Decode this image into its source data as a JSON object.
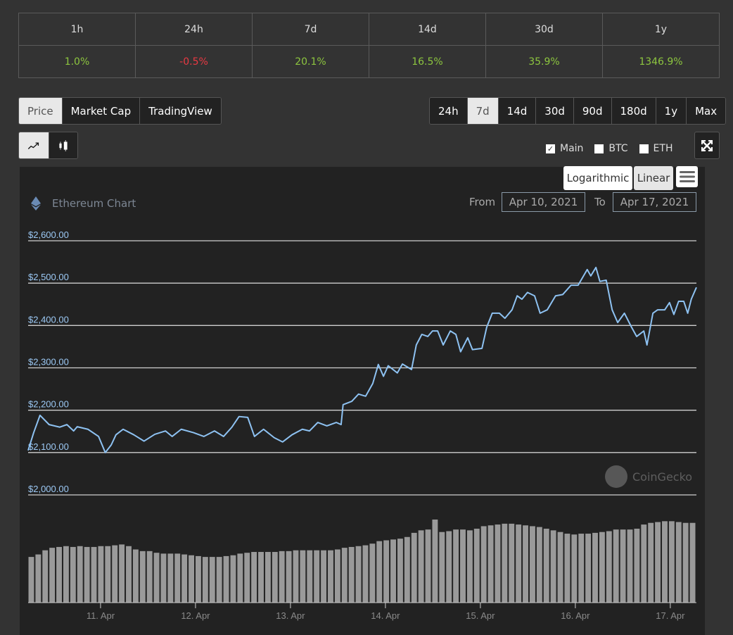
{
  "performance": {
    "periods": [
      "1h",
      "24h",
      "7d",
      "14d",
      "30d",
      "1y"
    ],
    "changes": [
      "1.0%",
      "-0.5%",
      "20.1%",
      "16.5%",
      "35.9%",
      "1346.9%"
    ]
  },
  "tabs": {
    "price": "Price",
    "market_cap": "Market Cap",
    "trading_view": "TradingView",
    "active": "Price"
  },
  "ranges": {
    "items": [
      "24h",
      "7d",
      "14d",
      "30d",
      "90d",
      "180d",
      "1y",
      "Max"
    ],
    "active": "7d"
  },
  "chart_type": {
    "line_icon": "line-chart-icon",
    "candle_icon": "candlestick-icon",
    "active": "line"
  },
  "compare": {
    "main": "Main",
    "btc": "BTC",
    "eth": "ETH",
    "main_checked": true,
    "btc_checked": false,
    "eth_checked": false
  },
  "scale": {
    "log": "Logarithmic",
    "linear": "Linear",
    "active": "Linear"
  },
  "chart_header": {
    "title": "Ethereum Chart",
    "from_label": "From",
    "from": "Apr 10, 2021",
    "to_label": "To",
    "to": "Apr 17, 2021"
  },
  "watermark": "CoinGecko",
  "colors": {
    "line": "#8ec2f2",
    "positive": "#8dc63f",
    "negative": "#ea3943",
    "volume": "#9a9a9a"
  },
  "chart_data": {
    "type": "line",
    "title": "Ethereum Chart",
    "x_unit": "hours since Apr 10 00:00",
    "xlim": [
      5.7,
      174.6
    ],
    "x_ticks": [
      {
        "label": "11. Apr",
        "value": 24
      },
      {
        "label": "12. Apr",
        "value": 48
      },
      {
        "label": "13. Apr",
        "value": 72
      },
      {
        "label": "14. Apr",
        "value": 96
      },
      {
        "label": "15. Apr",
        "value": 120
      },
      {
        "label": "16. Apr",
        "value": 144
      },
      {
        "label": "17. Apr",
        "value": 168
      }
    ],
    "y_ticks": [
      {
        "label": "$2,000.00",
        "value": 2000
      },
      {
        "label": "$2,100.00",
        "value": 2100
      },
      {
        "label": "$2,200.00",
        "value": 2200
      },
      {
        "label": "$2,300.00",
        "value": 2300
      },
      {
        "label": "$2,400.00",
        "value": 2400
      },
      {
        "label": "$2,500.00",
        "value": 2500
      },
      {
        "label": "$2,600.00",
        "value": 2600
      }
    ],
    "ylim": [
      2000,
      2600
    ],
    "price": [
      [
        5.7,
        2105
      ],
      [
        7.1,
        2147
      ],
      [
        8.7,
        2188
      ],
      [
        11.0,
        2166
      ],
      [
        13.7,
        2160
      ],
      [
        15.5,
        2166
      ],
      [
        17.2,
        2151
      ],
      [
        18.1,
        2161
      ],
      [
        20.8,
        2155
      ],
      [
        23.5,
        2138
      ],
      [
        25.2,
        2100
      ],
      [
        26.7,
        2118
      ],
      [
        27.9,
        2142
      ],
      [
        29.7,
        2155
      ],
      [
        32.4,
        2142
      ],
      [
        35.0,
        2127
      ],
      [
        37.7,
        2143
      ],
      [
        40.4,
        2151
      ],
      [
        42.1,
        2138
      ],
      [
        44.4,
        2155
      ],
      [
        47.5,
        2147
      ],
      [
        50.1,
        2138
      ],
      [
        52.8,
        2151
      ],
      [
        55.1,
        2138
      ],
      [
        57.2,
        2160
      ],
      [
        59.0,
        2185
      ],
      [
        61.2,
        2183
      ],
      [
        62.9,
        2138
      ],
      [
        65.2,
        2155
      ],
      [
        67.9,
        2135
      ],
      [
        70.0,
        2125
      ],
      [
        72.4,
        2142
      ],
      [
        75.0,
        2155
      ],
      [
        76.8,
        2151
      ],
      [
        78.9,
        2171
      ],
      [
        81.2,
        2163
      ],
      [
        83.6,
        2171
      ],
      [
        84.8,
        2166
      ],
      [
        85.3,
        2213
      ],
      [
        87.5,
        2221
      ],
      [
        89.2,
        2238
      ],
      [
        91.0,
        2233
      ],
      [
        92.8,
        2263
      ],
      [
        94.2,
        2308
      ],
      [
        95.5,
        2280
      ],
      [
        96.7,
        2305
      ],
      [
        99.0,
        2288
      ],
      [
        100.3,
        2309
      ],
      [
        102.6,
        2296
      ],
      [
        103.8,
        2354
      ],
      [
        105.2,
        2379
      ],
      [
        106.7,
        2374
      ],
      [
        107.9,
        2387
      ],
      [
        109.2,
        2387
      ],
      [
        110.6,
        2354
      ],
      [
        112.4,
        2387
      ],
      [
        113.8,
        2379
      ],
      [
        115.0,
        2338
      ],
      [
        116.8,
        2371
      ],
      [
        118.0,
        2343
      ],
      [
        120.4,
        2346
      ],
      [
        121.6,
        2396
      ],
      [
        123.0,
        2429
      ],
      [
        124.8,
        2429
      ],
      [
        126.2,
        2417
      ],
      [
        128.0,
        2437
      ],
      [
        129.3,
        2470
      ],
      [
        130.5,
        2462
      ],
      [
        131.9,
        2478
      ],
      [
        133.7,
        2470
      ],
      [
        135.1,
        2429
      ],
      [
        136.9,
        2437
      ],
      [
        139.0,
        2470
      ],
      [
        140.8,
        2473
      ],
      [
        142.9,
        2495
      ],
      [
        144.7,
        2495
      ],
      [
        147.0,
        2532
      ],
      [
        147.9,
        2517
      ],
      [
        149.2,
        2537
      ],
      [
        150.2,
        2504
      ],
      [
        151.8,
        2507
      ],
      [
        153.3,
        2437
      ],
      [
        154.7,
        2407
      ],
      [
        156.4,
        2429
      ],
      [
        158.2,
        2396
      ],
      [
        159.5,
        2374
      ],
      [
        161.3,
        2387
      ],
      [
        162.1,
        2354
      ],
      [
        163.6,
        2429
      ],
      [
        164.8,
        2437
      ],
      [
        166.6,
        2437
      ],
      [
        167.8,
        2454
      ],
      [
        168.9,
        2426
      ],
      [
        170.1,
        2457
      ],
      [
        171.4,
        2457
      ],
      [
        172.4,
        2429
      ],
      [
        173.3,
        2462
      ],
      [
        174.6,
        2490
      ]
    ],
    "volume_relative": [
      55,
      58,
      63,
      66,
      67,
      68,
      67,
      68,
      67,
      67,
      68,
      68,
      69,
      70,
      68,
      64,
      62,
      62,
      60,
      59,
      59,
      59,
      58,
      57,
      56,
      55,
      55,
      55,
      56,
      57,
      59,
      60,
      61,
      61,
      61,
      61,
      62,
      62,
      63,
      63,
      63,
      63,
      63,
      63,
      64,
      66,
      67,
      68,
      69,
      71,
      74,
      75,
      76,
      77,
      79,
      84,
      87,
      88,
      100,
      85,
      86,
      88,
      88,
      87,
      89,
      92,
      93,
      94,
      95,
      95,
      94,
      93,
      92,
      91,
      89,
      87,
      85,
      83,
      82,
      83,
      83,
      84,
      85,
      86,
      88,
      88,
      88,
      89,
      94,
      96,
      97,
      98,
      98,
      97,
      96,
      96
    ]
  }
}
